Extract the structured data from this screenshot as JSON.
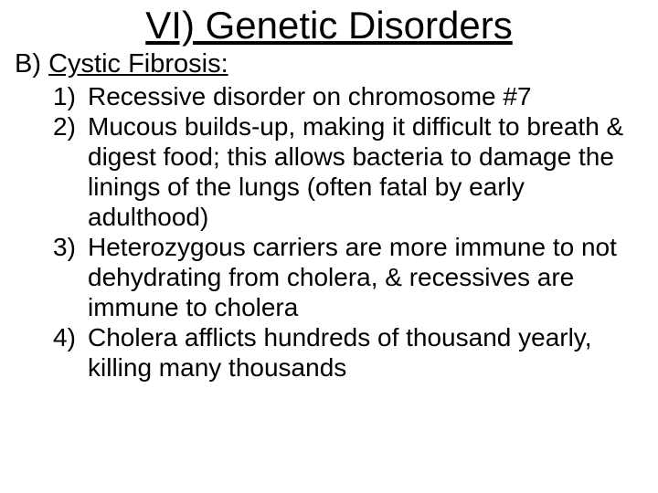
{
  "title": "VI) Genetic Disorders",
  "section": {
    "label": "B) ",
    "name": "Cystic Fibrosis:"
  },
  "items": [
    {
      "num": "1)",
      "text": "Recessive disorder on chromosome #7"
    },
    {
      "num": "2)",
      "text": "Mucous builds-up, making it difficult to breath & digest food; this allows bacteria to damage the linings of the lungs (often fatal by early adulthood)"
    },
    {
      "num": "3)",
      "text": "Heterozygous carriers are more immune to not dehydrating from cholera, & recessives are immune to cholera"
    },
    {
      "num": "4)",
      "text": "Cholera afflicts hundreds of thousand yearly, killing many thousands"
    }
  ],
  "colors": {
    "background": "#ffffff",
    "text": "#000000"
  },
  "fonts": {
    "family": "Arial",
    "title_size": 42,
    "section_size": 29,
    "item_size": 28
  }
}
